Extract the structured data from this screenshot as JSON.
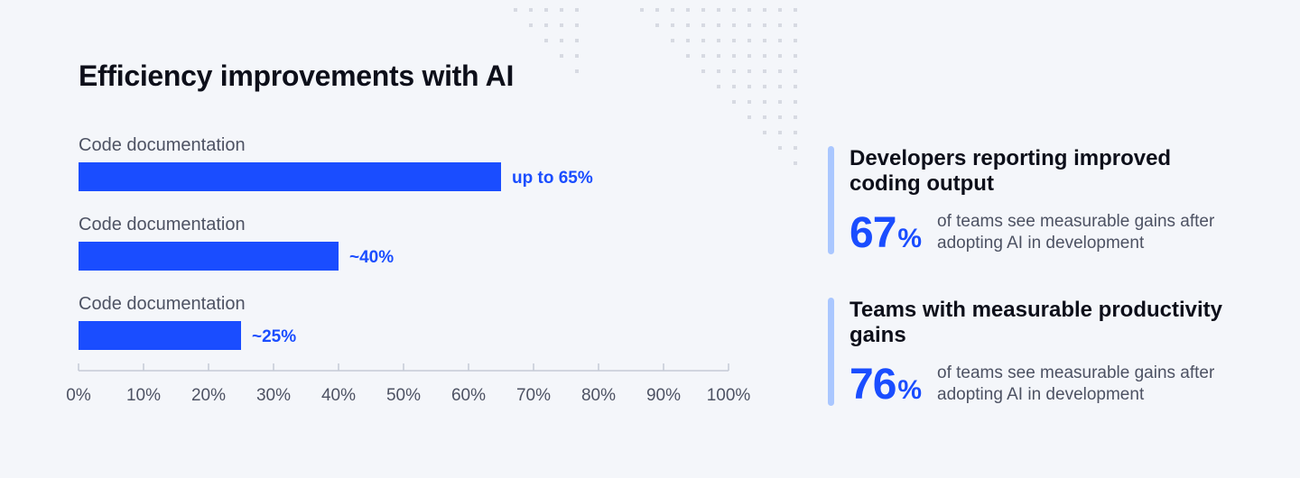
{
  "chart_data": {
    "type": "bar",
    "orientation": "horizontal",
    "title": "Efficiency improvements with AI",
    "categories": [
      "Code documentation",
      "Code documentation",
      "Code documentation"
    ],
    "values": [
      65,
      40,
      25
    ],
    "value_labels": [
      "up to 65%",
      "~40%",
      "~25%"
    ],
    "xlim": [
      0,
      100
    ],
    "x_ticks": [
      0,
      10,
      20,
      30,
      40,
      50,
      60,
      70,
      80,
      90,
      100
    ],
    "x_tick_labels": [
      "0%",
      "10%",
      "20%",
      "30%",
      "40%",
      "50%",
      "60%",
      "70%",
      "80%",
      "90%",
      "100%"
    ],
    "grid": false,
    "colors": {
      "bar": "#1a4dff",
      "value_label": "#1a4dff",
      "axis": "#c5cad6",
      "category_label": "#4d5263"
    }
  },
  "stats": [
    {
      "title": "Developers reporting improved coding output",
      "number": "67",
      "unit": "%",
      "description": "of teams see measurable gains after adopting AI in development"
    },
    {
      "title": "Teams with measurable productivity gains",
      "number": "76",
      "unit": "%",
      "description": "of teams see measurable gains after adopting AI in development"
    }
  ],
  "colors": {
    "background": "#f4f6fa",
    "accent": "#1a4dff",
    "accent_light": "#aac7ff",
    "text_dark": "#0d0f1a",
    "text_muted": "#4d5263"
  }
}
